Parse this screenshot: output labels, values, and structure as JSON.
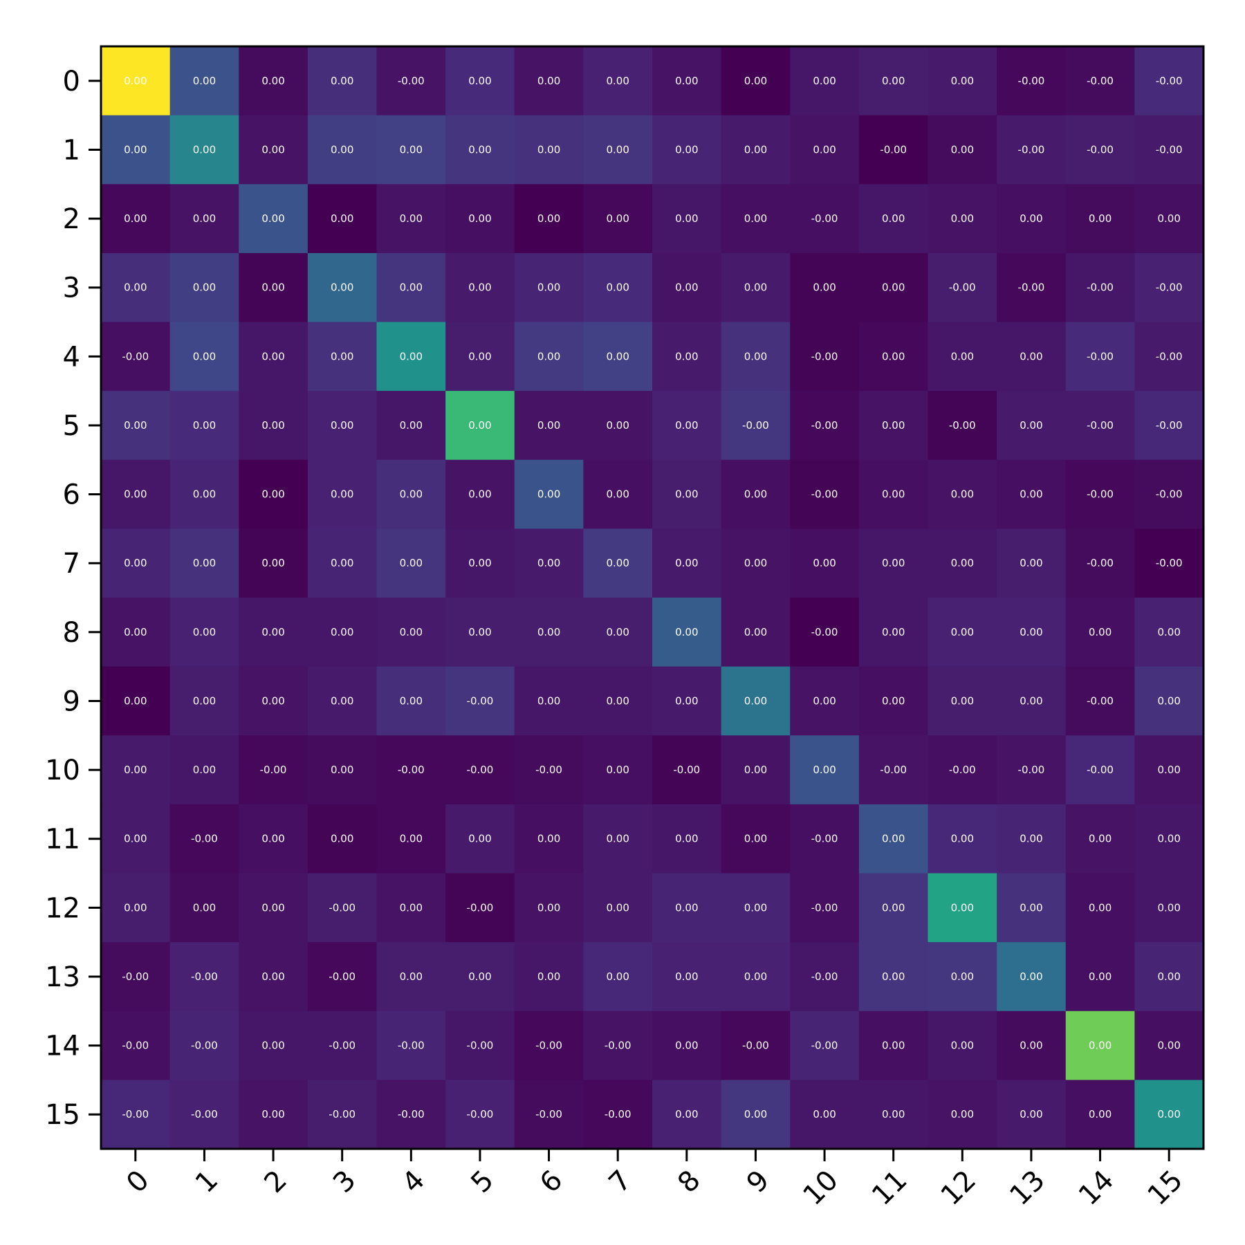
{
  "chart_data": {
    "type": "heatmap",
    "title": "",
    "xlabel": "",
    "ylabel": "",
    "x_tick_labels": [
      "0",
      "1",
      "2",
      "3",
      "4",
      "5",
      "6",
      "7",
      "8",
      "9",
      "10",
      "11",
      "12",
      "13",
      "14",
      "15"
    ],
    "y_tick_labels": [
      "0",
      "1",
      "2",
      "3",
      "4",
      "5",
      "6",
      "7",
      "8",
      "9",
      "10",
      "11",
      "12",
      "13",
      "14",
      "15"
    ],
    "colormap": "viridis",
    "vrange": [
      0,
      1
    ],
    "intensity": [
      [
        1.0,
        0.25,
        0.03,
        0.13,
        0.05,
        0.12,
        0.05,
        0.09,
        0.05,
        0.0,
        0.06,
        0.08,
        0.07,
        0.02,
        0.03,
        0.12
      ],
      [
        0.25,
        0.45,
        0.05,
        0.18,
        0.19,
        0.15,
        0.14,
        0.15,
        0.1,
        0.07,
        0.05,
        0.0,
        0.03,
        0.07,
        0.08,
        0.07
      ],
      [
        0.02,
        0.05,
        0.26,
        0.0,
        0.05,
        0.04,
        0.0,
        0.02,
        0.06,
        0.04,
        0.04,
        0.06,
        0.05,
        0.04,
        0.03,
        0.04
      ],
      [
        0.13,
        0.18,
        0.01,
        0.33,
        0.15,
        0.07,
        0.1,
        0.12,
        0.05,
        0.07,
        0.01,
        0.01,
        0.08,
        0.02,
        0.06,
        0.09
      ],
      [
        0.04,
        0.21,
        0.06,
        0.14,
        0.5,
        0.08,
        0.17,
        0.19,
        0.07,
        0.14,
        0.01,
        0.02,
        0.06,
        0.06,
        0.12,
        0.07
      ],
      [
        0.14,
        0.12,
        0.06,
        0.09,
        0.06,
        0.67,
        0.05,
        0.05,
        0.09,
        0.16,
        0.02,
        0.05,
        0.01,
        0.07,
        0.07,
        0.11
      ],
      [
        0.06,
        0.1,
        0.0,
        0.09,
        0.13,
        0.05,
        0.26,
        0.04,
        0.08,
        0.04,
        0.01,
        0.04,
        0.05,
        0.04,
        0.02,
        0.03
      ],
      [
        0.1,
        0.14,
        0.01,
        0.1,
        0.15,
        0.06,
        0.07,
        0.17,
        0.07,
        0.05,
        0.04,
        0.06,
        0.06,
        0.08,
        0.03,
        0.0
      ],
      [
        0.05,
        0.09,
        0.06,
        0.06,
        0.07,
        0.08,
        0.08,
        0.08,
        0.29,
        0.05,
        0.0,
        0.06,
        0.09,
        0.09,
        0.04,
        0.09
      ],
      [
        0.0,
        0.08,
        0.05,
        0.07,
        0.13,
        0.15,
        0.06,
        0.06,
        0.07,
        0.38,
        0.05,
        0.04,
        0.08,
        0.08,
        0.03,
        0.14
      ],
      [
        0.07,
        0.06,
        0.02,
        0.03,
        0.02,
        0.02,
        0.03,
        0.04,
        0.01,
        0.05,
        0.26,
        0.05,
        0.04,
        0.05,
        0.11,
        0.05
      ],
      [
        0.07,
        0.02,
        0.04,
        0.01,
        0.02,
        0.07,
        0.04,
        0.07,
        0.06,
        0.02,
        0.04,
        0.26,
        0.11,
        0.1,
        0.05,
        0.06
      ],
      [
        0.08,
        0.03,
        0.05,
        0.08,
        0.05,
        0.01,
        0.05,
        0.07,
        0.1,
        0.1,
        0.04,
        0.15,
        0.58,
        0.14,
        0.04,
        0.06
      ],
      [
        0.03,
        0.09,
        0.05,
        0.02,
        0.08,
        0.08,
        0.06,
        0.11,
        0.09,
        0.09,
        0.06,
        0.15,
        0.16,
        0.36,
        0.04,
        0.1
      ],
      [
        0.04,
        0.1,
        0.06,
        0.06,
        0.1,
        0.06,
        0.02,
        0.05,
        0.04,
        0.02,
        0.1,
        0.04,
        0.06,
        0.03,
        0.78,
        0.04
      ],
      [
        0.11,
        0.09,
        0.05,
        0.08,
        0.05,
        0.09,
        0.03,
        0.02,
        0.09,
        0.16,
        0.06,
        0.06,
        0.05,
        0.07,
        0.04,
        0.5
      ]
    ],
    "labels": [
      [
        "0.00",
        "0.00",
        "0.00",
        "0.00",
        "-0.00",
        "0.00",
        "0.00",
        "0.00",
        "0.00",
        "0.00",
        "0.00",
        "0.00",
        "0.00",
        "-0.00",
        "-0.00",
        "-0.00"
      ],
      [
        "0.00",
        "0.00",
        "0.00",
        "0.00",
        "0.00",
        "0.00",
        "0.00",
        "0.00",
        "0.00",
        "0.00",
        "0.00",
        "-0.00",
        "0.00",
        "-0.00",
        "-0.00",
        "-0.00"
      ],
      [
        "0.00",
        "0.00",
        "0.00",
        "0.00",
        "0.00",
        "0.00",
        "0.00",
        "0.00",
        "0.00",
        "0.00",
        "-0.00",
        "0.00",
        "0.00",
        "0.00",
        "0.00",
        "0.00"
      ],
      [
        "0.00",
        "0.00",
        "0.00",
        "0.00",
        "0.00",
        "0.00",
        "0.00",
        "0.00",
        "0.00",
        "0.00",
        "0.00",
        "0.00",
        "-0.00",
        "-0.00",
        "-0.00",
        "-0.00"
      ],
      [
        "-0.00",
        "0.00",
        "0.00",
        "0.00",
        "0.00",
        "0.00",
        "0.00",
        "0.00",
        "0.00",
        "0.00",
        "-0.00",
        "0.00",
        "0.00",
        "0.00",
        "-0.00",
        "-0.00"
      ],
      [
        "0.00",
        "0.00",
        "0.00",
        "0.00",
        "0.00",
        "0.00",
        "0.00",
        "0.00",
        "0.00",
        "-0.00",
        "-0.00",
        "0.00",
        "-0.00",
        "0.00",
        "-0.00",
        "-0.00"
      ],
      [
        "0.00",
        "0.00",
        "0.00",
        "0.00",
        "0.00",
        "0.00",
        "0.00",
        "0.00",
        "0.00",
        "0.00",
        "-0.00",
        "0.00",
        "0.00",
        "0.00",
        "-0.00",
        "-0.00"
      ],
      [
        "0.00",
        "0.00",
        "0.00",
        "0.00",
        "0.00",
        "0.00",
        "0.00",
        "0.00",
        "0.00",
        "0.00",
        "0.00",
        "0.00",
        "0.00",
        "0.00",
        "-0.00",
        "-0.00"
      ],
      [
        "0.00",
        "0.00",
        "0.00",
        "0.00",
        "0.00",
        "0.00",
        "0.00",
        "0.00",
        "0.00",
        "0.00",
        "-0.00",
        "0.00",
        "0.00",
        "0.00",
        "0.00",
        "0.00"
      ],
      [
        "0.00",
        "0.00",
        "0.00",
        "0.00",
        "0.00",
        "-0.00",
        "0.00",
        "0.00",
        "0.00",
        "0.00",
        "0.00",
        "0.00",
        "0.00",
        "0.00",
        "-0.00",
        "0.00"
      ],
      [
        "0.00",
        "0.00",
        "-0.00",
        "0.00",
        "-0.00",
        "-0.00",
        "-0.00",
        "0.00",
        "-0.00",
        "0.00",
        "0.00",
        "-0.00",
        "-0.00",
        "-0.00",
        "-0.00",
        "0.00"
      ],
      [
        "0.00",
        "-0.00",
        "0.00",
        "0.00",
        "0.00",
        "0.00",
        "0.00",
        "0.00",
        "0.00",
        "0.00",
        "-0.00",
        "0.00",
        "0.00",
        "0.00",
        "0.00",
        "0.00"
      ],
      [
        "0.00",
        "0.00",
        "0.00",
        "-0.00",
        "0.00",
        "-0.00",
        "0.00",
        "0.00",
        "0.00",
        "0.00",
        "-0.00",
        "0.00",
        "0.00",
        "0.00",
        "0.00",
        "0.00"
      ],
      [
        "-0.00",
        "-0.00",
        "0.00",
        "-0.00",
        "0.00",
        "0.00",
        "0.00",
        "0.00",
        "0.00",
        "0.00",
        "-0.00",
        "0.00",
        "0.00",
        "0.00",
        "0.00",
        "0.00"
      ],
      [
        "-0.00",
        "-0.00",
        "0.00",
        "-0.00",
        "-0.00",
        "-0.00",
        "-0.00",
        "-0.00",
        "0.00",
        "-0.00",
        "-0.00",
        "0.00",
        "0.00",
        "0.00",
        "0.00",
        "0.00"
      ],
      [
        "-0.00",
        "-0.00",
        "0.00",
        "-0.00",
        "-0.00",
        "-0.00",
        "-0.00",
        "-0.00",
        "0.00",
        "0.00",
        "0.00",
        "0.00",
        "0.00",
        "0.00",
        "0.00",
        "0.00"
      ]
    ]
  }
}
